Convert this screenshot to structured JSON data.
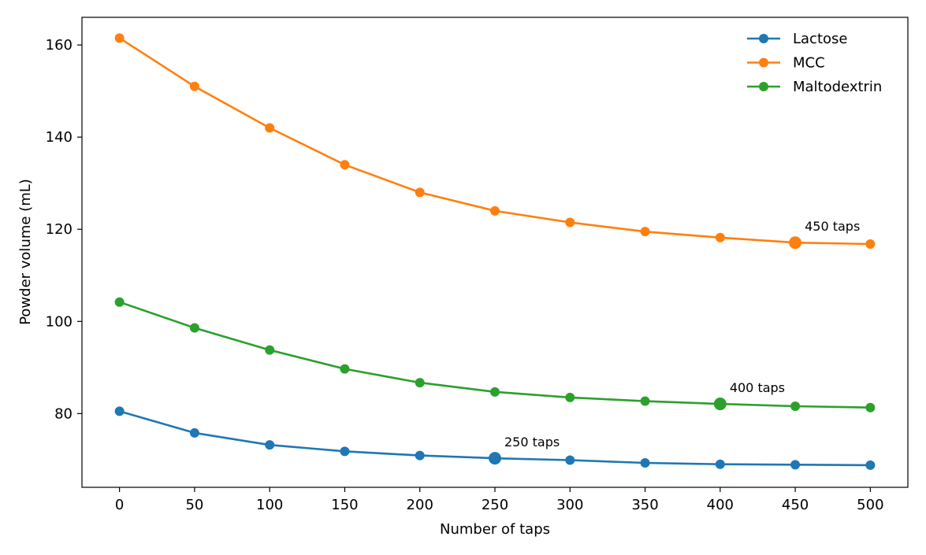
{
  "chart_data": {
    "type": "line",
    "xlabel": "Number of taps",
    "ylabel": "Powder volume (mL)",
    "xlim": [
      -25,
      525
    ],
    "ylim": [
      64,
      166
    ],
    "xticks": [
      0,
      50,
      100,
      150,
      200,
      250,
      300,
      350,
      400,
      450,
      500
    ],
    "yticks": [
      80,
      100,
      120,
      140,
      160
    ],
    "grid": false,
    "legend_position": "top-right",
    "x": [
      0,
      50,
      100,
      150,
      200,
      250,
      300,
      350,
      400,
      450,
      500
    ],
    "series": [
      {
        "name": "Lactose",
        "color": "#1f77b4",
        "values": [
          80.5,
          75.8,
          73.2,
          71.8,
          70.9,
          70.3,
          69.9,
          69.3,
          69.0,
          68.9,
          68.8
        ],
        "highlight": {
          "x": 250,
          "label": "250 taps"
        }
      },
      {
        "name": "MCC",
        "color": "#ff7f0e",
        "values": [
          161.5,
          151.0,
          142.0,
          134.0,
          128.0,
          124.0,
          121.5,
          119.5,
          118.2,
          117.1,
          116.8
        ],
        "highlight": {
          "x": 450,
          "label": "450 taps"
        }
      },
      {
        "name": "Maltodextrin",
        "color": "#2ca02c",
        "values": [
          104.2,
          98.6,
          93.8,
          89.7,
          86.7,
          84.7,
          83.5,
          82.7,
          82.1,
          81.6,
          81.3
        ],
        "highlight": {
          "x": 400,
          "label": "400 taps"
        }
      }
    ]
  }
}
